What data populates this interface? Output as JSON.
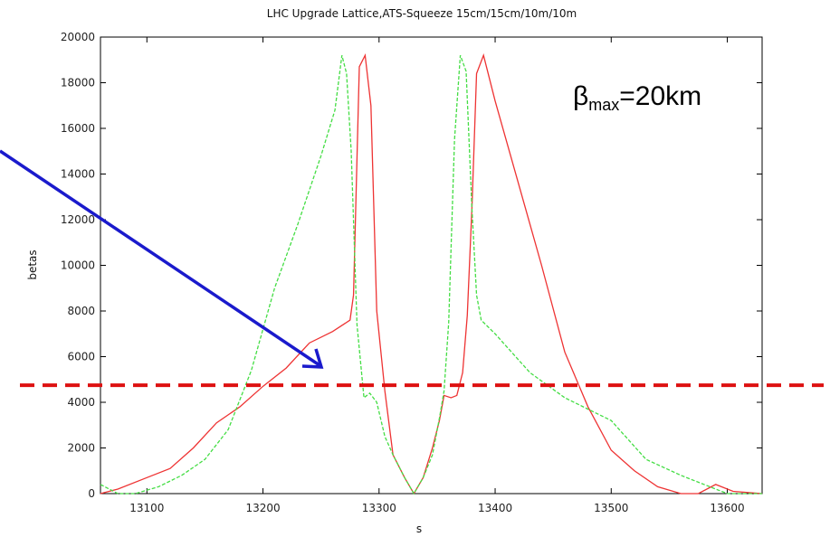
{
  "chart_data": {
    "type": "line",
    "title": "LHC Upgrade Lattice,ATS-Squeeze 15cm/15cm/10m/10m",
    "xlabel": "s",
    "ylabel": "betas",
    "xlim": [
      13060,
      13630
    ],
    "ylim": [
      0,
      20000
    ],
    "xticks": [
      13100,
      13200,
      13300,
      13400,
      13500,
      13600
    ],
    "yticks": [
      0,
      2000,
      4000,
      6000,
      8000,
      10000,
      12000,
      14000,
      16000,
      18000,
      20000
    ],
    "grid": false,
    "series": [
      {
        "color": "#ee3333",
        "dash": "solid",
        "x": [
          13060,
          13075,
          13100,
          13120,
          13140,
          13160,
          13180,
          13200,
          13220,
          13240,
          13260,
          13275,
          13278,
          13283,
          13288,
          13293,
          13298,
          13305,
          13312,
          13322,
          13330,
          13338,
          13346,
          13352,
          13356,
          13362,
          13367,
          13372,
          13376,
          13380,
          13384,
          13390,
          13400,
          13420,
          13440,
          13460,
          13480,
          13500,
          13520,
          13540,
          13560,
          13575,
          13590,
          13605,
          13630
        ],
        "y": [
          0,
          200,
          700,
          1100,
          2000,
          3100,
          3800,
          4700,
          5500,
          6600,
          7100,
          7600,
          8700,
          18700,
          19200,
          17000,
          8000,
          4500,
          1700,
          700,
          0,
          700,
          2000,
          3200,
          4300,
          4200,
          4300,
          5300,
          7800,
          12500,
          18400,
          19200,
          17200,
          13600,
          10000,
          6200,
          3800,
          1900,
          1000,
          300,
          0,
          0,
          400,
          100,
          0
        ]
      },
      {
        "color": "#44dd44",
        "dash": "dashed",
        "x": [
          13060,
          13075,
          13090,
          13110,
          13130,
          13150,
          13170,
          13190,
          13210,
          13230,
          13250,
          13262,
          13268,
          13272,
          13276,
          13281,
          13287,
          13292,
          13298,
          13305,
          13312,
          13322,
          13330,
          13338,
          13346,
          13352,
          13356,
          13360,
          13365,
          13370,
          13375,
          13380,
          13384,
          13388,
          13400,
          13430,
          13460,
          13500,
          13530,
          13560,
          13590,
          13600,
          13630
        ],
        "y": [
          400,
          0,
          0,
          300,
          800,
          1500,
          2800,
          5400,
          9000,
          11800,
          14800,
          16800,
          19200,
          18400,
          15000,
          7400,
          4200,
          4400,
          4000,
          2500,
          1700,
          700,
          0,
          700,
          1700,
          3300,
          4500,
          7500,
          15500,
          19200,
          18500,
          12500,
          8700,
          7600,
          7000,
          5300,
          4200,
          3200,
          1500,
          800,
          200,
          0,
          0
        ]
      }
    ],
    "annotations": {
      "beta_max_prefix": "β",
      "beta_max_subscript": "max",
      "beta_max_suffix": "=20km",
      "threshold_y": 4750,
      "threshold_color": "#dd1111",
      "arrow_color": "#1a1acc"
    }
  }
}
